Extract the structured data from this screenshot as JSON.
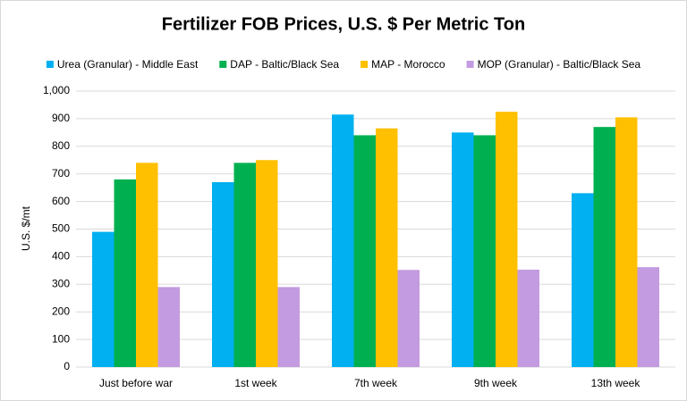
{
  "chart_data": {
    "type": "bar",
    "title": "Fertilizer FOB Prices, U.S. $ Per Metric Ton",
    "y_label": "U.S. $/mt",
    "categories": [
      "Just before war",
      "1st week",
      "7th week",
      "9th week",
      "13th week"
    ],
    "series": [
      {
        "name": "Urea (Granular) - Middle East",
        "color": "#00b0f0",
        "values": [
          490,
          670,
          915,
          850,
          630
        ]
      },
      {
        "name": "DAP - Baltic/Black Sea",
        "color": "#00b050",
        "values": [
          680,
          740,
          840,
          840,
          870
        ]
      },
      {
        "name": "MAP - Morocco",
        "color": "#ffc000",
        "values": [
          740,
          750,
          865,
          925,
          905
        ]
      },
      {
        "name": "MOP (Granular) -  Baltic/Black Sea",
        "color": "#c39be0",
        "values": [
          290,
          290,
          352,
          353,
          362
        ]
      }
    ],
    "ylim": [
      0,
      1000
    ],
    "yticks": [
      0,
      100,
      200,
      300,
      400,
      500,
      600,
      700,
      800,
      900,
      {
        "value": 1000,
        "label": "1,000"
      }
    ],
    "grid": true,
    "legend": "top"
  }
}
